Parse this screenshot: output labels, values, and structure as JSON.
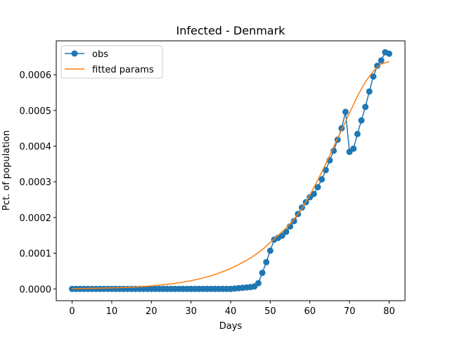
{
  "chart_data": {
    "type": "line",
    "title": "Infected - Denmark",
    "xlabel": "Days",
    "ylabel": "Pct. of population",
    "xlim": [
      -4,
      84
    ],
    "ylim": [
      -3.3e-05,
      0.000695
    ],
    "xticks": [
      0,
      10,
      20,
      30,
      40,
      50,
      60,
      70,
      80
    ],
    "xtick_labels": [
      "0",
      "10",
      "20",
      "30",
      "40",
      "50",
      "60",
      "70",
      "80"
    ],
    "yticks": [
      0,
      0.0001,
      0.0002,
      0.0003,
      0.0004,
      0.0005,
      0.0006
    ],
    "ytick_labels": [
      "0.0000",
      "0.0001",
      "0.0002",
      "0.0003",
      "0.0004",
      "0.0005",
      "0.0006"
    ],
    "grid": false,
    "legend_position": "top-left",
    "series": [
      {
        "name": "obs",
        "color": "#1f77b4",
        "marker": "circle",
        "x": [
          0,
          1,
          2,
          3,
          4,
          5,
          6,
          7,
          8,
          9,
          10,
          11,
          12,
          13,
          14,
          15,
          16,
          17,
          18,
          19,
          20,
          21,
          22,
          23,
          24,
          25,
          26,
          27,
          28,
          29,
          30,
          31,
          32,
          33,
          34,
          35,
          36,
          37,
          38,
          39,
          40,
          41,
          42,
          43,
          44,
          45,
          46,
          47,
          48,
          49,
          50,
          51,
          52,
          53,
          54,
          55,
          56,
          57,
          58,
          59,
          60,
          61,
          62,
          63,
          64,
          65,
          66,
          67,
          68,
          69,
          70,
          71,
          72,
          73,
          74,
          75,
          76,
          77,
          78,
          79,
          80
        ],
        "y": [
          0,
          0,
          0,
          0,
          0,
          0,
          0,
          0,
          0,
          0,
          0,
          0,
          0,
          0,
          0,
          0,
          0,
          0,
          0,
          0,
          0,
          0,
          0,
          0,
          0,
          0,
          0,
          0,
          0,
          0,
          0,
          0,
          0,
          0,
          0,
          0,
          0,
          0,
          0,
          0,
          0,
          1e-06,
          2e-06,
          3e-06,
          4e-06,
          5e-06,
          7e-06,
          1.6e-05,
          4.5e-05,
          7.5e-05,
          0.000107,
          0.000138,
          0.000143,
          0.000149,
          0.00016,
          0.000175,
          0.00019,
          0.00021,
          0.000228,
          0.000243,
          0.000257,
          0.000266,
          0.000285,
          0.000307,
          0.000333,
          0.00036,
          0.000387,
          0.000418,
          0.00045,
          0.000496,
          0.000384,
          0.000393,
          0.000434,
          0.000472,
          0.00051,
          0.000553,
          0.000595,
          0.000625,
          0.00064,
          0.000663,
          0.000659
        ]
      },
      {
        "name": "fitted params",
        "color": "#ff7f0e",
        "x": [
          0,
          2,
          4,
          6,
          8,
          10,
          12,
          14,
          16,
          18,
          20,
          22,
          24,
          26,
          28,
          30,
          32,
          34,
          36,
          38,
          40,
          42,
          44,
          46,
          48,
          50,
          52,
          54,
          56,
          58,
          60,
          62,
          64,
          66,
          68,
          70,
          72,
          74,
          76,
          78,
          80
        ],
        "y": [
          9e-07,
          1.1e-06,
          1.4e-06,
          1.8e-06,
          2.3e-06,
          2.9e-06,
          3.6e-06,
          4.5e-06,
          5.5e-06,
          6.8e-06,
          8.4e-06,
          1.03e-05,
          1.26e-05,
          1.55e-05,
          1.89e-05,
          2.3e-05,
          2.78e-05,
          3.35e-05,
          4.02e-05,
          4.82e-05,
          5.75e-05,
          6.8e-05,
          8e-05,
          9.4e-05,
          0.00011,
          0.00013,
          0.00015,
          0.00017,
          0.000195,
          0.000225,
          0.000263,
          0.000305,
          0.00035,
          0.000398,
          0.000445,
          0.000493,
          0.00054,
          0.00058,
          0.00061,
          0.00063,
          0.000637
        ]
      }
    ]
  }
}
